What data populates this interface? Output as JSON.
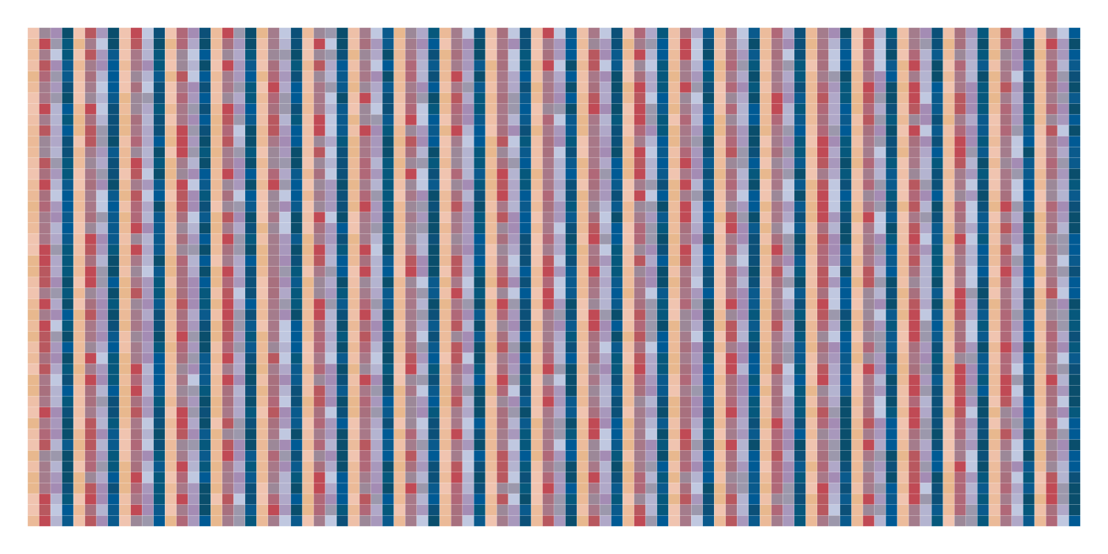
{
  "chart_data": {
    "type": "heatmap",
    "title": "",
    "xlabel": "",
    "ylabel": "",
    "rows": 46,
    "cols": 92,
    "grid": true,
    "gridline_color": "rgba(255,255,255,0.35)",
    "column_cycle_palettes": [
      [
        "#e8b88e",
        "#ecbc9c",
        "#eec0a8",
        "#f0c4b0",
        "#ebba98"
      ],
      [
        "#a87888",
        "#b06878",
        "#9c8898",
        "#a47c8c",
        "#b8585f",
        "#c04a55",
        "#a8707e"
      ],
      [
        "#b4b4d0",
        "#a898bc",
        "#b0a8c8",
        "#a48cb4",
        "#c0c8e0",
        "#9c98ac"
      ],
      [
        "#0a5a8c",
        "#0c5078",
        "#06587c",
        "#005a94",
        "#0a4e6c"
      ]
    ]
  }
}
